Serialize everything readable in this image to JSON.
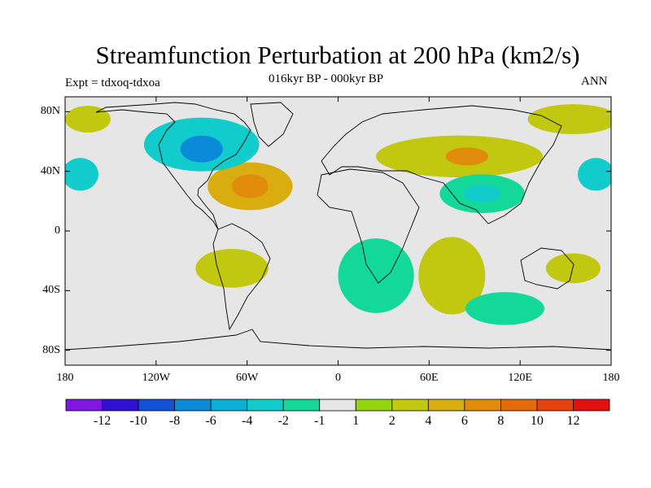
{
  "figure": {
    "title": "Streamfunction Perturbation at 200 hPa (km2/s)",
    "subtitle": "016kyr BP - 000kyr BP",
    "left_label": "Expt = tdxoq-tdxoa",
    "right_label": "ANN"
  },
  "map": {
    "projection": "cylindrical equidistant",
    "lon_range": [
      -180,
      180
    ],
    "lat_range": [
      -90,
      90
    ],
    "lat_ticks": [
      {
        "value": 80,
        "label": "80N"
      },
      {
        "value": 40,
        "label": "40N"
      },
      {
        "value": 0,
        "label": "0"
      },
      {
        "value": -40,
        "label": "40S"
      },
      {
        "value": -80,
        "label": "80S"
      }
    ],
    "lon_ticks": [
      {
        "value": -180,
        "label": "180"
      },
      {
        "value": -120,
        "label": "120W"
      },
      {
        "value": -60,
        "label": "60W"
      },
      {
        "value": 0,
        "label": "0"
      },
      {
        "value": 60,
        "label": "60E"
      },
      {
        "value": 120,
        "label": "120E"
      },
      {
        "value": 180,
        "label": "180"
      }
    ],
    "background_color": "#e6e6e6",
    "features": [
      {
        "name": "anticyclone-atlantic",
        "lon": -58,
        "lat": 30,
        "rx": 28,
        "ry": 16,
        "level": 4
      },
      {
        "name": "anticyclone-atlantic-core",
        "lon": -58,
        "lat": 30,
        "rx": 12,
        "ry": 8,
        "level": 6
      },
      {
        "name": "cyclone-north-america",
        "lon": -90,
        "lat": 58,
        "rx": 38,
        "ry": 18,
        "level": -4
      },
      {
        "name": "cyclone-north-america-core",
        "lon": -90,
        "lat": 55,
        "rx": 14,
        "ry": 9,
        "level": -8
      },
      {
        "name": "anticyclone-asia",
        "lon": 80,
        "lat": 50,
        "rx": 55,
        "ry": 14,
        "level": 2
      },
      {
        "name": "anticyclone-asia-core",
        "lon": 85,
        "lat": 50,
        "rx": 14,
        "ry": 6,
        "level": 6
      },
      {
        "name": "cyclone-asia",
        "lon": 95,
        "lat": 25,
        "rx": 28,
        "ry": 13,
        "level": -2
      },
      {
        "name": "cyclone-asia-core",
        "lon": 95,
        "lat": 25,
        "rx": 12,
        "ry": 6,
        "level": -4
      },
      {
        "name": "cyclone-pacific-west",
        "lon": -170,
        "lat": 38,
        "rx": 12,
        "ry": 11,
        "level": -4
      },
      {
        "name": "cyclone-pacific-east",
        "lon": 170,
        "lat": 38,
        "rx": 12,
        "ry": 11,
        "level": -4
      },
      {
        "name": "anticyclone-south-america",
        "lon": -70,
        "lat": -25,
        "rx": 24,
        "ry": 13,
        "level": 2
      },
      {
        "name": "cyclone-south-atlantic",
        "lon": 25,
        "lat": -30,
        "rx": 25,
        "ry": 25,
        "level": -2
      },
      {
        "name": "anticyclone-indian-ocean",
        "lon": 75,
        "lat": -30,
        "rx": 22,
        "ry": 26,
        "level": 2
      },
      {
        "name": "cyclone-southern-indian",
        "lon": 110,
        "lat": -52,
        "rx": 26,
        "ry": 11,
        "level": -2
      },
      {
        "name": "anticyclone-australia-east",
        "lon": 155,
        "lat": -25,
        "rx": 18,
        "ry": 10,
        "level": 2
      },
      {
        "name": "anticyclone-arctic-east",
        "lon": 155,
        "lat": 75,
        "rx": 30,
        "ry": 10,
        "level": 2
      },
      {
        "name": "anticyclone-arctic-west",
        "lon": -165,
        "lat": 75,
        "rx": 15,
        "ry": 9,
        "level": 2
      }
    ]
  },
  "colorbar": {
    "colors": [
      "#7f17de",
      "#2f12d1",
      "#0f52d6",
      "#0a8ad9",
      "#0ab0d5",
      "#12cccc",
      "#14d89a",
      "#e6e6e6",
      "#92d510",
      "#c2c810",
      "#d9ad10",
      "#e18b0c",
      "#e36b0c",
      "#e4420c",
      "#e31010"
    ],
    "labels": [
      "-12",
      "-10",
      "-8",
      "-6",
      "-4",
      "-2",
      "-1",
      "1",
      "2",
      "4",
      "6",
      "8",
      "10",
      "12"
    ]
  }
}
